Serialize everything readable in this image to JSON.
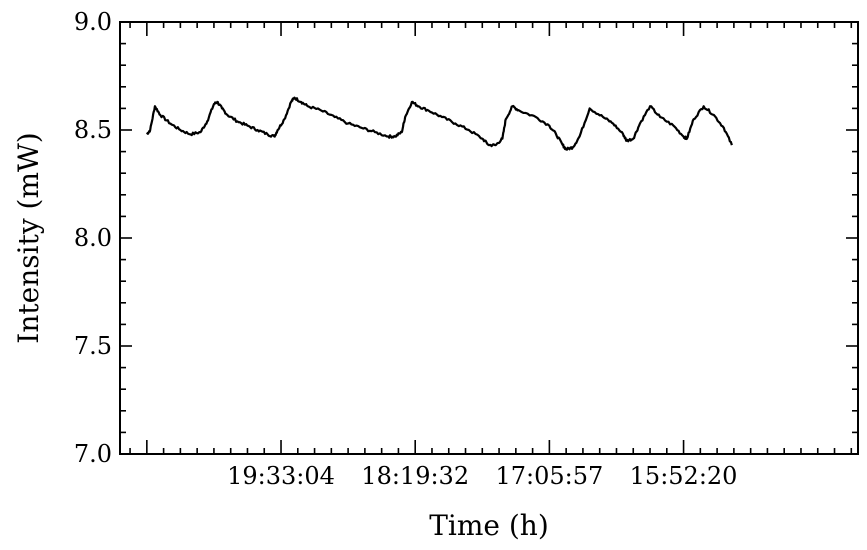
{
  "chart_data": {
    "type": "line",
    "title": "",
    "xlabel": "Time (h)",
    "ylabel": "Intensity (mW)",
    "ylim": [
      7.0,
      9.0
    ],
    "yticks": [
      "7.0",
      "7.5",
      "8.0",
      "8.5",
      "9.0"
    ],
    "yminor_step": 0.1,
    "xlim": [
      -0.4,
      10.6
    ],
    "xtick_labels": [
      {
        "x": 2,
        "label": "19:33:04"
      },
      {
        "x": 4,
        "label": "18:19:32"
      },
      {
        "x": 6,
        "label": "17:05:57"
      },
      {
        "x": 8,
        "label": "15:52:20"
      }
    ],
    "xtick_major": [
      0,
      2,
      4,
      6,
      8
    ],
    "xtick_minor_step": 0.25,
    "grid": false,
    "series": [
      {
        "color": "#000000",
        "x": [
          0,
          0.05,
          0.12,
          0.2,
          0.35,
          0.5,
          0.65,
          0.8,
          0.9,
          1.0,
          1.05,
          1.12,
          1.2,
          1.35,
          1.5,
          1.65,
          1.8,
          1.9,
          1.95,
          2.05,
          2.15,
          2.2,
          2.3,
          2.4,
          2.6,
          2.8,
          3.0,
          3.2,
          3.4,
          3.6,
          3.7,
          3.8,
          3.85,
          3.95,
          4.05,
          4.2,
          4.4,
          4.6,
          4.8,
          5.0,
          5.1,
          5.2,
          5.3,
          5.35,
          5.45,
          5.55,
          5.8,
          6.0,
          6.1,
          6.2,
          6.25,
          6.35,
          6.45,
          6.6,
          6.8,
          6.95,
          7.1,
          7.15,
          7.25,
          7.35,
          7.5,
          7.65,
          7.85,
          8.0,
          8.05,
          8.15,
          8.3,
          8.45,
          8.6,
          8.72
        ],
        "y": [
          8.48,
          8.5,
          8.61,
          8.57,
          8.53,
          8.5,
          8.48,
          8.49,
          8.54,
          8.62,
          8.63,
          8.6,
          8.57,
          8.54,
          8.52,
          8.5,
          8.48,
          8.47,
          8.5,
          8.55,
          8.63,
          8.65,
          8.63,
          8.61,
          8.59,
          8.56,
          8.53,
          8.51,
          8.49,
          8.47,
          8.47,
          8.49,
          8.56,
          8.63,
          8.61,
          8.59,
          8.56,
          8.53,
          8.5,
          8.46,
          8.43,
          8.43,
          8.46,
          8.55,
          8.61,
          8.59,
          8.56,
          8.52,
          8.48,
          8.43,
          8.41,
          8.42,
          8.47,
          8.6,
          8.56,
          8.53,
          8.48,
          8.45,
          8.46,
          8.53,
          8.61,
          8.56,
          8.52,
          8.47,
          8.46,
          8.55,
          8.61,
          8.57,
          8.51,
          8.43
        ]
      }
    ]
  }
}
